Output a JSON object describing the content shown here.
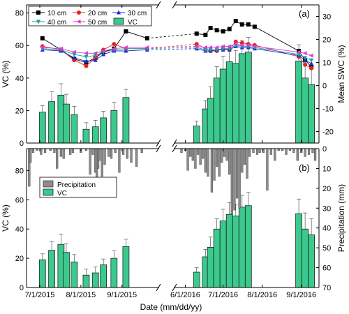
{
  "chart_data": [
    {
      "type": "bar",
      "panel_label": "(a)",
      "xlabel": "Date (mm/dd/yy)",
      "ylabel_left": "VC (%)",
      "ylabel_right": "Mean SWC (%)",
      "ylim_left": [
        0,
        85
      ],
      "yticks_left": [
        0,
        20,
        40,
        60,
        80
      ],
      "ylim_right": [
        -25,
        35
      ],
      "yticks_right": [
        -20,
        -10,
        0,
        10,
        20,
        30
      ],
      "x_tick_labels": [
        "7/1/2015",
        "8/1/2015",
        "9/1/2015",
        "6/1/2016",
        "7/1/2016",
        "8/1/2016",
        "9/1/2016"
      ],
      "axis_break": "between 9/1/2015 and 6/1/2016",
      "legend_position": "top-left",
      "legend": [
        "10 cm",
        "20 cm",
        "30 cm",
        "40 cm",
        "50 cm",
        "VC"
      ],
      "vc_series": {
        "name": "VC",
        "color": "#3cc98d",
        "x": [
          "2015-07-03",
          "2015-07-10",
          "2015-07-17",
          "2015-07-21",
          "2015-07-27",
          "2015-08-05",
          "2015-08-12",
          "2015-08-18",
          "2015-08-26",
          "2015-09-04",
          "2016-06-10",
          "2016-06-17",
          "2016-06-21",
          "2016-06-26",
          "2016-07-01",
          "2016-07-06",
          "2016-07-11",
          "2016-07-16",
          "2016-07-21",
          "2016-08-30",
          "2016-09-04",
          "2016-09-09"
        ],
        "values": [
          19,
          25.5,
          29.5,
          24,
          17.5,
          8.5,
          10,
          15.5,
          20,
          28,
          10.5,
          21,
          27.5,
          40,
          45.5,
          50,
          49,
          55,
          56,
          50.5,
          40,
          36
        ],
        "errors": [
          4,
          6,
          7,
          6,
          5,
          4,
          4,
          4,
          5,
          5,
          3,
          5,
          7,
          7,
          8,
          8,
          8,
          8,
          9,
          10,
          11,
          11
        ]
      },
      "swc_series": [
        {
          "name": "10 cm",
          "color": "#000000",
          "marker": "square",
          "x": [
            "2015-07-03",
            "2015-07-17",
            "2015-07-27",
            "2015-08-05",
            "2015-08-12",
            "2015-08-18",
            "2015-08-26",
            "2015-09-04",
            "2015-09-20",
            "2016-06-10",
            "2016-06-17",
            "2016-06-21",
            "2016-06-26",
            "2016-07-01",
            "2016-07-06",
            "2016-07-11",
            "2016-07-16",
            "2016-07-21",
            "2016-07-26",
            "2016-08-30",
            "2016-09-04",
            "2016-09-09"
          ],
          "values": [
            20.5,
            15.5,
            11.5,
            10,
            12,
            14.5,
            16,
            23.5,
            20.5,
            22.5,
            22,
            25,
            24,
            23.5,
            24.5,
            28,
            26.5,
            26.5,
            25.5,
            15,
            11,
            8
          ]
        },
        {
          "name": "20 cm",
          "color": "#e8241b",
          "marker": "circle",
          "x": [
            "2015-07-03",
            "2015-07-17",
            "2015-07-27",
            "2015-08-05",
            "2015-08-12",
            "2015-08-18",
            "2015-08-26",
            "2015-09-04",
            "2015-09-20",
            "2016-06-10",
            "2016-06-17",
            "2016-06-21",
            "2016-06-26",
            "2016-07-01",
            "2016-07-06",
            "2016-07-11",
            "2016-07-16",
            "2016-07-21",
            "2016-07-26",
            "2016-08-30",
            "2016-09-04",
            "2016-09-09"
          ],
          "values": [
            17,
            15.5,
            11,
            8.5,
            12,
            15.5,
            18,
            16,
            16,
            18,
            16,
            15,
            15,
            16,
            15.5,
            19,
            18.5,
            18,
            17.5,
            12.5,
            9,
            7.5
          ]
        },
        {
          "name": "30 cm",
          "color": "#1a2fd6",
          "marker": "triangle-up",
          "x": [
            "2015-07-03",
            "2015-07-17",
            "2015-07-27",
            "2015-08-05",
            "2015-08-12",
            "2015-08-18",
            "2015-08-26",
            "2015-09-04",
            "2015-09-20",
            "2016-06-10",
            "2016-06-17",
            "2016-06-21",
            "2016-06-26",
            "2016-07-01",
            "2016-07-06",
            "2016-07-11",
            "2016-07-16",
            "2016-07-21",
            "2016-07-26",
            "2016-08-30",
            "2016-09-04",
            "2016-09-09"
          ],
          "values": [
            15.5,
            15,
            12,
            10.5,
            11,
            13.5,
            15,
            15,
            15.5,
            16,
            15,
            15,
            15.5,
            15.5,
            15.5,
            17,
            16.5,
            16.5,
            16,
            13,
            11,
            9.5
          ]
        },
        {
          "name": "40 cm",
          "color": "#14a39b",
          "marker": "triangle-down",
          "x": [
            "2015-07-03",
            "2015-07-17",
            "2015-07-27",
            "2015-08-05",
            "2015-08-12",
            "2015-08-18",
            "2015-08-26",
            "2015-09-04",
            "2015-09-20",
            "2016-06-10",
            "2016-06-17",
            "2016-06-21",
            "2016-06-26",
            "2016-07-01",
            "2016-07-06",
            "2016-07-11",
            "2016-07-16",
            "2016-07-21",
            "2016-07-26",
            "2016-08-30",
            "2016-09-04",
            "2016-09-09"
          ],
          "values": [
            16,
            15.5,
            13.5,
            12.5,
            13,
            14.5,
            15.5,
            16,
            16,
            16.5,
            15.5,
            15.5,
            15.5,
            16,
            16,
            17.5,
            17,
            17,
            16.5,
            13.5,
            12,
            11
          ]
        },
        {
          "name": "50 cm",
          "color": "#d63fd6",
          "marker": "triangle-left",
          "x": [
            "2015-07-03",
            "2015-07-17",
            "2015-07-27",
            "2015-08-05",
            "2015-08-12",
            "2015-08-18",
            "2015-08-26",
            "2015-09-04",
            "2015-09-20",
            "2016-06-10",
            "2016-06-17",
            "2016-06-21",
            "2016-06-26",
            "2016-07-01",
            "2016-07-06",
            "2016-07-11",
            "2016-07-16",
            "2016-07-21",
            "2016-07-26",
            "2016-08-30",
            "2016-09-04",
            "2016-09-09"
          ],
          "values": [
            16.5,
            16,
            14.5,
            14,
            14,
            15,
            16,
            16.5,
            16.5,
            17,
            16.5,
            16.5,
            16.5,
            17,
            17,
            18,
            17.5,
            17.5,
            17,
            14.5,
            14,
            13
          ]
        }
      ]
    },
    {
      "type": "bar",
      "panel_label": "(b)",
      "xlabel": "Date (mm/dd/yy)",
      "ylabel_left": "VC (%)",
      "ylabel_right": "Precipitation (mm)",
      "ylim_left": [
        0,
        95
      ],
      "yticks_left": [
        0,
        20,
        40,
        60,
        80
      ],
      "ylim_right": [
        70,
        0
      ],
      "yticks_right": [
        0,
        10,
        20,
        30,
        40,
        50,
        60,
        70
      ],
      "x_tick_labels": [
        "7/1/2015",
        "8/1/2015",
        "9/1/2015",
        "6/1/2016",
        "7/1/2016",
        "8/1/2016",
        "9/1/2016"
      ],
      "axis_break": "between 9/1/2015 and 6/1/2016",
      "legend_position": "left",
      "legend": [
        "Precipitation",
        "VC"
      ],
      "precip_series": {
        "name": "Precipitation",
        "color": "#8c8c8c",
        "x": [
          "2015-06-23",
          "2015-06-24",
          "2015-06-26",
          "2015-06-29",
          "2015-07-02",
          "2015-07-05",
          "2015-07-09",
          "2015-07-12",
          "2015-07-14",
          "2015-07-17",
          "2015-07-19",
          "2015-07-24",
          "2015-07-26",
          "2015-08-01",
          "2015-08-05",
          "2015-08-08",
          "2015-08-10",
          "2015-08-12",
          "2015-08-13",
          "2015-08-14",
          "2015-08-15",
          "2015-08-17",
          "2015-08-19",
          "2015-08-22",
          "2015-08-24",
          "2015-08-27",
          "2015-08-30",
          "2015-09-02",
          "2015-09-05",
          "2015-09-08",
          "2015-09-12",
          "2015-09-16",
          "2016-05-29",
          "2016-06-01",
          "2016-06-03",
          "2016-06-05",
          "2016-06-07",
          "2016-06-09",
          "2016-06-11",
          "2016-06-13",
          "2016-06-15",
          "2016-06-17",
          "2016-06-19",
          "2016-06-22",
          "2016-06-24",
          "2016-06-26",
          "2016-06-28",
          "2016-06-30",
          "2016-07-02",
          "2016-07-04",
          "2016-07-06",
          "2016-07-08",
          "2016-07-10",
          "2016-07-12",
          "2016-07-14",
          "2016-07-16",
          "2016-07-18",
          "2016-07-20",
          "2016-07-22",
          "2016-07-25",
          "2016-07-28",
          "2016-07-30",
          "2016-08-02",
          "2016-08-05",
          "2016-08-08",
          "2016-08-11",
          "2016-08-14",
          "2016-08-17",
          "2016-08-20",
          "2016-08-23",
          "2016-08-26",
          "2016-08-29",
          "2016-09-01",
          "2016-09-04",
          "2016-09-07",
          "2016-09-10",
          "2016-09-12"
        ],
        "values": [
          19,
          7,
          2,
          1,
          3,
          2,
          1,
          2,
          10,
          4,
          5,
          3,
          2,
          2,
          1,
          13,
          3,
          12,
          15,
          10,
          6,
          14,
          8,
          4,
          5,
          2,
          12,
          3,
          5,
          7,
          9,
          2,
          2,
          1,
          11,
          4,
          6,
          10,
          3,
          8,
          5,
          12,
          14,
          22,
          16,
          9,
          14,
          7,
          4,
          6,
          13,
          33,
          31,
          25,
          30,
          12,
          8,
          15,
          4,
          2,
          3,
          2,
          2,
          21,
          3,
          6,
          1,
          1,
          3,
          1,
          2,
          6,
          2,
          4,
          3,
          2,
          6
        ]
      },
      "vc_series": {
        "name": "VC",
        "color": "#3cc98d",
        "x": [
          "2015-07-03",
          "2015-07-10",
          "2015-07-17",
          "2015-07-21",
          "2015-07-27",
          "2015-08-05",
          "2015-08-12",
          "2015-08-18",
          "2015-08-26",
          "2015-09-04",
          "2016-06-10",
          "2016-06-17",
          "2016-06-21",
          "2016-06-26",
          "2016-07-01",
          "2016-07-06",
          "2016-07-11",
          "2016-07-16",
          "2016-07-21",
          "2016-08-30",
          "2016-09-04",
          "2016-09-09"
        ],
        "values": [
          19,
          25.5,
          29.5,
          24,
          17.5,
          8.5,
          10,
          15.5,
          20,
          28,
          10.5,
          21,
          27.5,
          40,
          45.5,
          50,
          49,
          55,
          56,
          50.5,
          40,
          36
        ],
        "errors": [
          4,
          6,
          7,
          6,
          5,
          4,
          4,
          4,
          5,
          5,
          3,
          5,
          7,
          7,
          8,
          8,
          8,
          8,
          9,
          10,
          11,
          11
        ]
      }
    }
  ]
}
